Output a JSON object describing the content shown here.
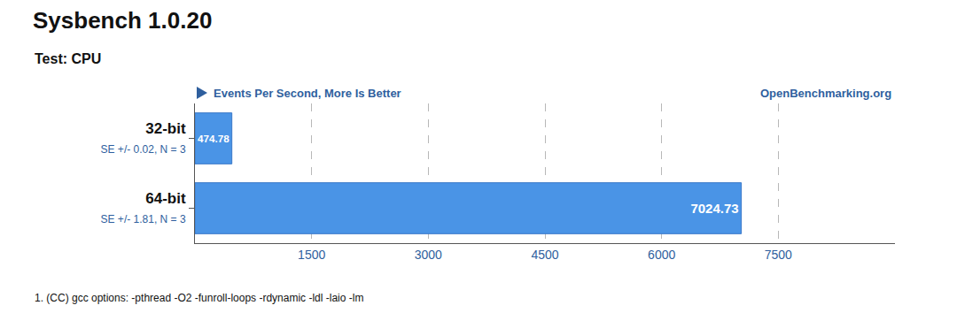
{
  "chart_data": {
    "type": "bar",
    "title": "Sysbench 1.0.20",
    "subtitle": "Test: CPU",
    "x_label": "Events Per Second, More Is Better",
    "source": "OpenBenchmarking.org",
    "footnote": "1. (CC) gcc options: -pthread -O2 -funroll-loops -rdynamic -ldl -laio -lm",
    "categories": [
      "32-bit",
      "64-bit"
    ],
    "category_notes": [
      "SE +/- 0.02, N = 3",
      "SE +/- 1.81, N = 3"
    ],
    "values": [
      474.78,
      7024.73
    ],
    "color": "#4a94e6",
    "xlim": [
      0,
      9000
    ],
    "xticks": [
      1500,
      3000,
      4500,
      6000,
      7500
    ],
    "grid": true,
    "orientation": "horizontal",
    "data_labels": true
  }
}
